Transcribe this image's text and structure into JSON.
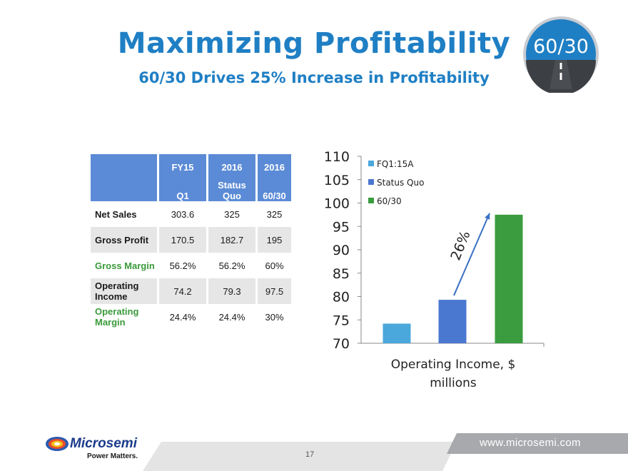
{
  "header": {
    "title": "Maximizing Profitability",
    "subtitle": "60/30 Drives 25% Increase in Profitability",
    "badge": "60/30"
  },
  "table": {
    "col_headers_top": [
      "FY15",
      "2016",
      "2016"
    ],
    "col_headers_bottom": [
      "Q1",
      "Status Quo",
      "60/30"
    ],
    "rows": [
      {
        "label": "Net Sales",
        "values": [
          "303.6",
          "325",
          "325"
        ]
      },
      {
        "label": "Gross Profit",
        "values": [
          "170.5",
          "182.7",
          "195"
        ]
      },
      {
        "label": "Gross Margin",
        "values": [
          "56.2%",
          "56.2%",
          "60%"
        ]
      },
      {
        "label": "Operating Income",
        "values": [
          "74.2",
          "79.3",
          "97.5"
        ]
      },
      {
        "label": "Operating Margin",
        "values": [
          "24.4%",
          "24.4%",
          "30%"
        ]
      }
    ]
  },
  "chart_data": {
    "type": "bar",
    "categories": [
      "FQ1:15A",
      "Status Quo",
      "60/30"
    ],
    "values": [
      74.2,
      79.3,
      97.5
    ],
    "colors": [
      "#4aa8dc",
      "#4a78d0",
      "#3a9c3f"
    ],
    "xlabel": "Operating Income, $ millions",
    "xlabel_lines": [
      "Operating Income, $",
      "millions"
    ],
    "ylabel": "",
    "ylim": [
      70,
      110
    ],
    "yticks": [
      "110",
      "105",
      "100",
      "95",
      "90",
      "85",
      "80",
      "75",
      "70"
    ],
    "legend": [
      "FQ1:15A",
      "Status Quo",
      "60/30"
    ],
    "legend_position": "top-right",
    "annotation": "26%",
    "grid": false
  },
  "footer": {
    "url": "www.microsemi.com",
    "page": "17",
    "company": "Microsemi",
    "tagline": "Power Matters."
  }
}
